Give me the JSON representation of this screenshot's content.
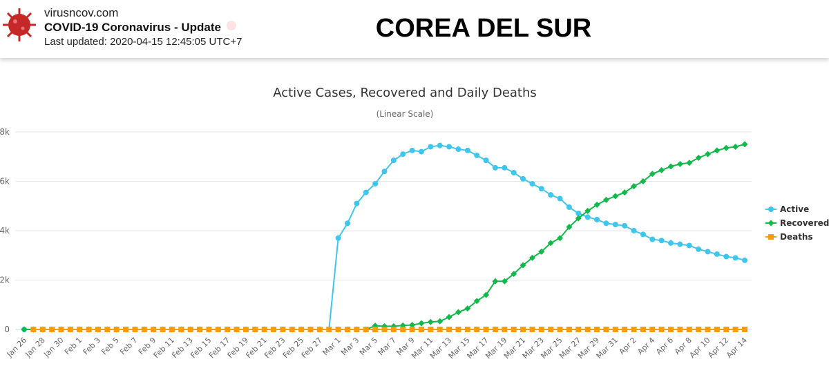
{
  "header": {
    "site": "virusncov.com",
    "app_title": "COVID-19 Coronavirus - Update",
    "last_updated": "Last updated: 2020-04-15 12:45:05 UTC+7",
    "country": "COREA DEL SUR"
  },
  "chart_data": {
    "type": "line",
    "title": "Active Cases, Recovered and Daily Deaths",
    "subtitle": "(Linear Scale)",
    "categories": [
      "Jan 26",
      null,
      "Jan 28",
      null,
      "Jan 30",
      null,
      "Feb 1",
      null,
      "Feb 3",
      null,
      "Feb 5",
      null,
      "Feb 7",
      null,
      "Feb 9",
      null,
      "Feb 11",
      null,
      "Feb 13",
      null,
      "Feb 15",
      null,
      "Feb 17",
      null,
      "Feb 19",
      null,
      "Feb 21",
      null,
      "Feb 23",
      null,
      "Feb 25",
      null,
      "Feb 27",
      null,
      "Mar 1",
      null,
      "Mar 3",
      null,
      "Mar 5",
      null,
      "Mar 7",
      null,
      "Mar 9",
      null,
      "Mar 11",
      null,
      "Mar 13",
      null,
      "Mar 15",
      null,
      "Mar 17",
      null,
      "Mar 19",
      null,
      "Mar 21",
      null,
      "Mar 23",
      null,
      "Mar 25",
      null,
      "Mar 27",
      null,
      "Mar 29",
      null,
      "Mar 31",
      null,
      "Apr 2",
      null,
      "Apr 4",
      null,
      "Apr 6",
      null,
      "Apr 8",
      null,
      "Apr 10",
      null,
      "Apr 12",
      null,
      "Apr 14"
    ],
    "series": [
      {
        "name": "Active",
        "color": "#3ec6ec",
        "values": [
          0,
          0,
          0,
          0,
          0,
          0,
          0,
          0,
          0,
          0,
          0,
          0,
          0,
          0,
          0,
          0,
          0,
          0,
          0,
          0,
          0,
          0,
          0,
          0,
          0,
          0,
          0,
          0,
          0,
          0,
          0,
          0,
          0,
          0,
          3700,
          4300,
          5100,
          5550,
          5900,
          6400,
          6850,
          7100,
          7250,
          7200,
          7400,
          7450,
          7400,
          7300,
          7250,
          7050,
          6850,
          6550,
          6550,
          6350,
          6100,
          5900,
          5700,
          5450,
          5300,
          4950,
          4700,
          4550,
          4450,
          4300,
          4250,
          4200,
          4000,
          3850,
          3650,
          3600,
          3500,
          3450,
          3400,
          3250,
          3150,
          3050,
          2950,
          2900,
          2800
        ]
      },
      {
        "name": "Recovered",
        "color": "#12b84a",
        "values": [
          0,
          0,
          0,
          0,
          0,
          0,
          0,
          0,
          0,
          0,
          0,
          0,
          0,
          0,
          0,
          0,
          0,
          0,
          0,
          0,
          0,
          0,
          0,
          0,
          0,
          0,
          0,
          0,
          0,
          0,
          0,
          0,
          0,
          0,
          0,
          0,
          0,
          0,
          150,
          130,
          130,
          160,
          180,
          250,
          300,
          330,
          500,
          700,
          850,
          1150,
          1400,
          1950,
          1950,
          2250,
          2600,
          2900,
          3150,
          3500,
          3700,
          4150,
          4500,
          4800,
          5050,
          5250,
          5400,
          5550,
          5800,
          6000,
          6300,
          6450,
          6600,
          6700,
          6750,
          6950,
          7100,
          7250,
          7350,
          7400,
          7500
        ]
      },
      {
        "name": "Deaths",
        "color": "#f59c0f",
        "values": [
          null,
          0,
          0,
          0,
          0,
          0,
          0,
          0,
          0,
          0,
          0,
          0,
          0,
          0,
          0,
          0,
          0,
          0,
          0,
          0,
          0,
          0,
          0,
          0,
          0,
          0,
          0,
          0,
          0,
          0,
          0,
          0,
          0,
          0,
          0,
          0,
          0,
          0,
          0,
          0,
          0,
          0,
          0,
          0,
          0,
          0,
          0,
          0,
          0,
          0,
          0,
          0,
          0,
          0,
          0,
          0,
          0,
          0,
          0,
          0,
          0,
          0,
          0,
          0,
          0,
          0,
          0,
          0,
          0,
          0,
          0,
          0,
          0,
          0,
          0,
          0,
          0,
          0,
          0
        ]
      }
    ],
    "ylim": [
      0,
      8000
    ],
    "yticks": [
      0,
      {
        "value": 2000,
        "label": "2k"
      },
      {
        "value": 4000,
        "label": "4k"
      },
      {
        "value": 6000,
        "label": "6k"
      },
      {
        "value": 8000,
        "label": "8k"
      }
    ],
    "grid": true,
    "legend": "right"
  }
}
